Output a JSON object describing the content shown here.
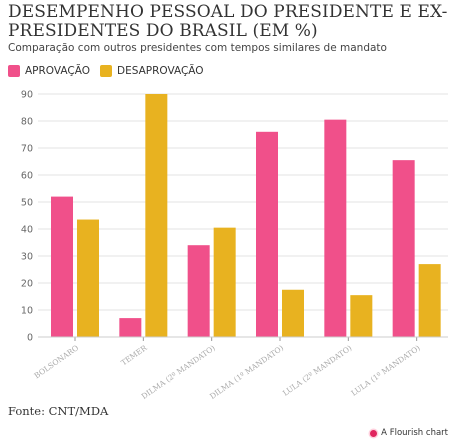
{
  "title": "DESEMPENHO PESSOAL DO PRESIDENTE E EX-PRESIDENTES DO BRASIL (EM %)",
  "subtitle": "Comparação com outros presidentes com tempos similares de mandato",
  "footer": {
    "source": "Fonte: CNT/MDA",
    "credit": "A Flourish chart"
  },
  "colors": {
    "approval": "#f0508a",
    "disapproval": "#e8b220",
    "grid": "#e3e3e3",
    "tick": "#999999"
  },
  "chart_data": {
    "type": "bar",
    "title": "DESEMPENHO PESSOAL DO PRESIDENTE E EX-PRESIDENTES DO BRASIL (EM %)",
    "subtitle": "Comparação com outros presidentes com tempos similares de mandato",
    "categories": [
      "BOLSONARO",
      "TEMER",
      "DILMA (2º MANDATO)",
      "DILMA (1º MANDATO)",
      "LULA (2º MANDATO)",
      "LULA (1º MANDATO)"
    ],
    "series": [
      {
        "name": "APROVAÇÃO",
        "values": [
          52,
          7,
          34,
          76,
          80.5,
          65.5
        ]
      },
      {
        "name": "DESAPROVAÇÃO",
        "values": [
          43.5,
          90,
          40.5,
          17.5,
          15.5,
          27
        ]
      }
    ],
    "xlabel": "",
    "ylabel": "",
    "ylim": [
      0,
      90
    ],
    "yticks": [
      0,
      10,
      20,
      30,
      40,
      50,
      60,
      70,
      80,
      90
    ],
    "grid": true,
    "legend": "top-left"
  }
}
